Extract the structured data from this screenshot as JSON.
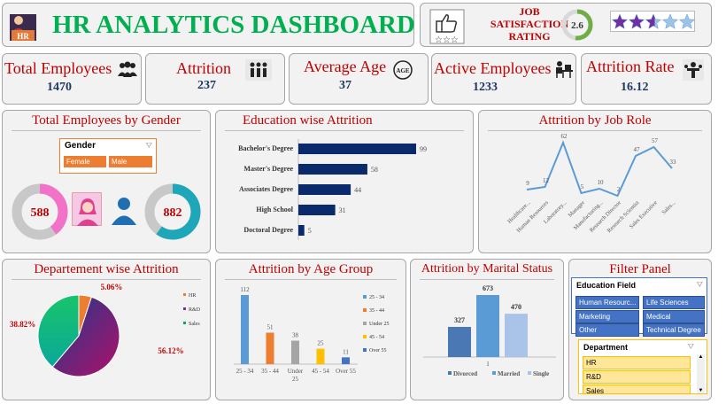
{
  "header": {
    "title": "HR ANALYTICS DASHBOARD",
    "logo_text": "HR"
  },
  "satisfaction": {
    "label_line1": "JOB",
    "label_line2": "SATISFACTION",
    "label_line3": "RATING",
    "value": "2.6",
    "stars_filled": 2.6,
    "stars_total": 5
  },
  "kpis": [
    {
      "label": "Total Employees",
      "value": "1470",
      "icon": "people-group-icon"
    },
    {
      "label": "Attrition",
      "value": "237",
      "icon": "people-leaving-icon"
    },
    {
      "label": "Average Age",
      "value": "37",
      "icon": "age-icon"
    },
    {
      "label": "Active Employees",
      "value": "1233",
      "icon": "person-at-desk-icon"
    },
    {
      "label": "Attrition Rate",
      "value": "16.12",
      "icon": "attrition-rate-icon"
    }
  ],
  "gender": {
    "title": "Total Employees by Gender",
    "slicer_title": "Gender",
    "options": [
      "Female",
      "Male"
    ],
    "female_value": "588",
    "male_value": "882",
    "female_share": 0.4,
    "male_share": 0.6
  },
  "education_attrition": {
    "title": "Education wise Attrition",
    "chart_data": {
      "type": "bar",
      "categories": [
        "Bachelor's Degree",
        "Master's Degree",
        "Associates Degree",
        "High School",
        "Doctoral Degree"
      ],
      "values": [
        99,
        58,
        44,
        31,
        5
      ],
      "orientation": "horizontal"
    }
  },
  "job_role": {
    "title": "Attrition by Job Role",
    "chart_data": {
      "type": "line",
      "categories": [
        "Healthcare...",
        "Human Resources",
        "Laboratory...",
        "Manager",
        "Manufacturing...",
        "Research Director",
        "Research Scientist",
        "Sales Executive",
        "Sales..."
      ],
      "values": [
        9,
        12,
        62,
        5,
        10,
        2,
        47,
        57,
        33
      ]
    }
  },
  "department": {
    "title": "Departement wise Attrition",
    "chart_data": {
      "type": "pie",
      "categories": [
        "HR",
        "R&D",
        "Sales"
      ],
      "values": [
        5.06,
        56.12,
        38.82
      ],
      "labels": [
        "5.06%",
        "56.12%",
        "38.82%"
      ],
      "legend": "right"
    }
  },
  "age_group": {
    "title": "Attrition by Age Group",
    "chart_data": {
      "type": "bar",
      "categories": [
        "25 - 34",
        "35 - 44",
        "Under 25",
        "45 - 54",
        "Over 55"
      ],
      "values": [
        112,
        51,
        38,
        25,
        11
      ],
      "legend": "right"
    }
  },
  "marital": {
    "title": "Attrition by Marital Status",
    "chart_data": {
      "type": "bar",
      "categories": [
        "1"
      ],
      "series": [
        {
          "name": "Divorced",
          "values": [
            327
          ]
        },
        {
          "name": "Married",
          "values": [
            673
          ]
        },
        {
          "name": "Single",
          "values": [
            470
          ]
        }
      ],
      "legend": "bottom"
    }
  },
  "filter": {
    "title": "Filter Panel",
    "education_title": "Education Field",
    "education_options": [
      "Human Resourc...",
      "Life Sciences",
      "Marketing",
      "Medical",
      "Other",
      "Technical Degree"
    ],
    "department_title": "Department",
    "department_options": [
      "HR",
      "R&D",
      "Sales"
    ]
  },
  "colors": {
    "title_green": "#00b050",
    "label_red": "#c00000",
    "value_navy": "#1f3864",
    "female_pink": "#f272c8",
    "male_teal": "#1ea7b8",
    "bar_navy": "#0b2a6b",
    "line_blue": "#5b9bd5",
    "slicer_orange": "#ed7d31",
    "slicer_blue": "#4472c4",
    "slicer_yellow": "#ffc000"
  }
}
